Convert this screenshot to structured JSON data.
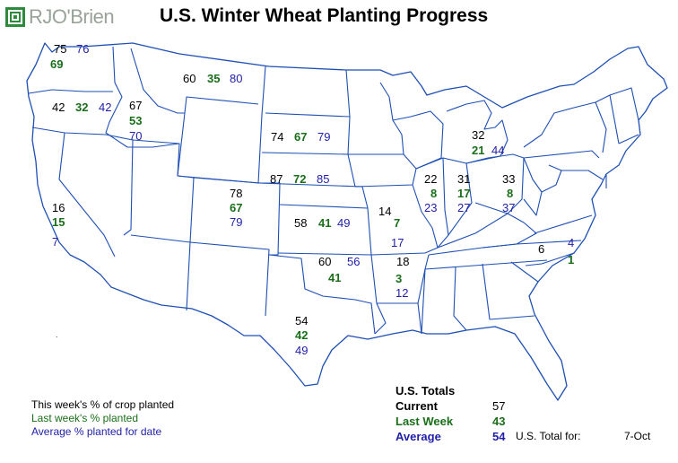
{
  "header": {
    "brand": "RJO'Brien",
    "title": "U.S. Winter Wheat Planting Progress"
  },
  "colors": {
    "current": "#000000",
    "last_week": "#1a6e1a",
    "average": "#1f1fa8",
    "logo_green": "#2e8b3d"
  },
  "states": [
    {
      "state": "WA",
      "current": "75",
      "last_week": "69",
      "average": "76"
    },
    {
      "state": "OR",
      "current": "42",
      "last_week": "32",
      "average": "42"
    },
    {
      "state": "ID",
      "current": "67",
      "last_week": "53",
      "average": "70"
    },
    {
      "state": "MT",
      "current": "60",
      "last_week": "35",
      "average": "80"
    },
    {
      "state": "CA",
      "current": "16",
      "last_week": "15",
      "average": "7"
    },
    {
      "state": "SD",
      "current": "74",
      "last_week": "67",
      "average": "79"
    },
    {
      "state": "NE",
      "current": "87",
      "last_week": "72",
      "average": "85"
    },
    {
      "state": "CO",
      "current": "78",
      "last_week": "67",
      "average": "79"
    },
    {
      "state": "KS",
      "current": "58",
      "last_week": "41",
      "average": "49"
    },
    {
      "state": "OK",
      "current": "60",
      "last_week": "41",
      "average": "56"
    },
    {
      "state": "TX",
      "current": "54",
      "last_week": "42",
      "average": "49"
    },
    {
      "state": "MO",
      "current": "14",
      "last_week": "7",
      "average": "17"
    },
    {
      "state": "AR",
      "current": "18",
      "last_week": "3",
      "average": "12"
    },
    {
      "state": "IL",
      "current": "22",
      "last_week": "8",
      "average": "23"
    },
    {
      "state": "IN",
      "current": "31",
      "last_week": "17",
      "average": "27"
    },
    {
      "state": "OH",
      "current": "33",
      "last_week": "8",
      "average": "37"
    },
    {
      "state": "MI",
      "current": "32",
      "last_week": "21",
      "average": "44"
    },
    {
      "state": "NC",
      "current": "6",
      "last_week": "1",
      "average": "4"
    }
  ],
  "legend": {
    "current": "This week's % of crop planted",
    "last_week": "Last week's % planted",
    "average": "Average % planted for date"
  },
  "totals": {
    "heading": "U.S. Totals",
    "current_label": "Current",
    "current_value": "57",
    "last_week_label": "Last Week",
    "last_week_value": "43",
    "average_label": "Average",
    "average_value": "54",
    "total_for_label": "U.S. Total for:",
    "date": "7-Oct"
  }
}
